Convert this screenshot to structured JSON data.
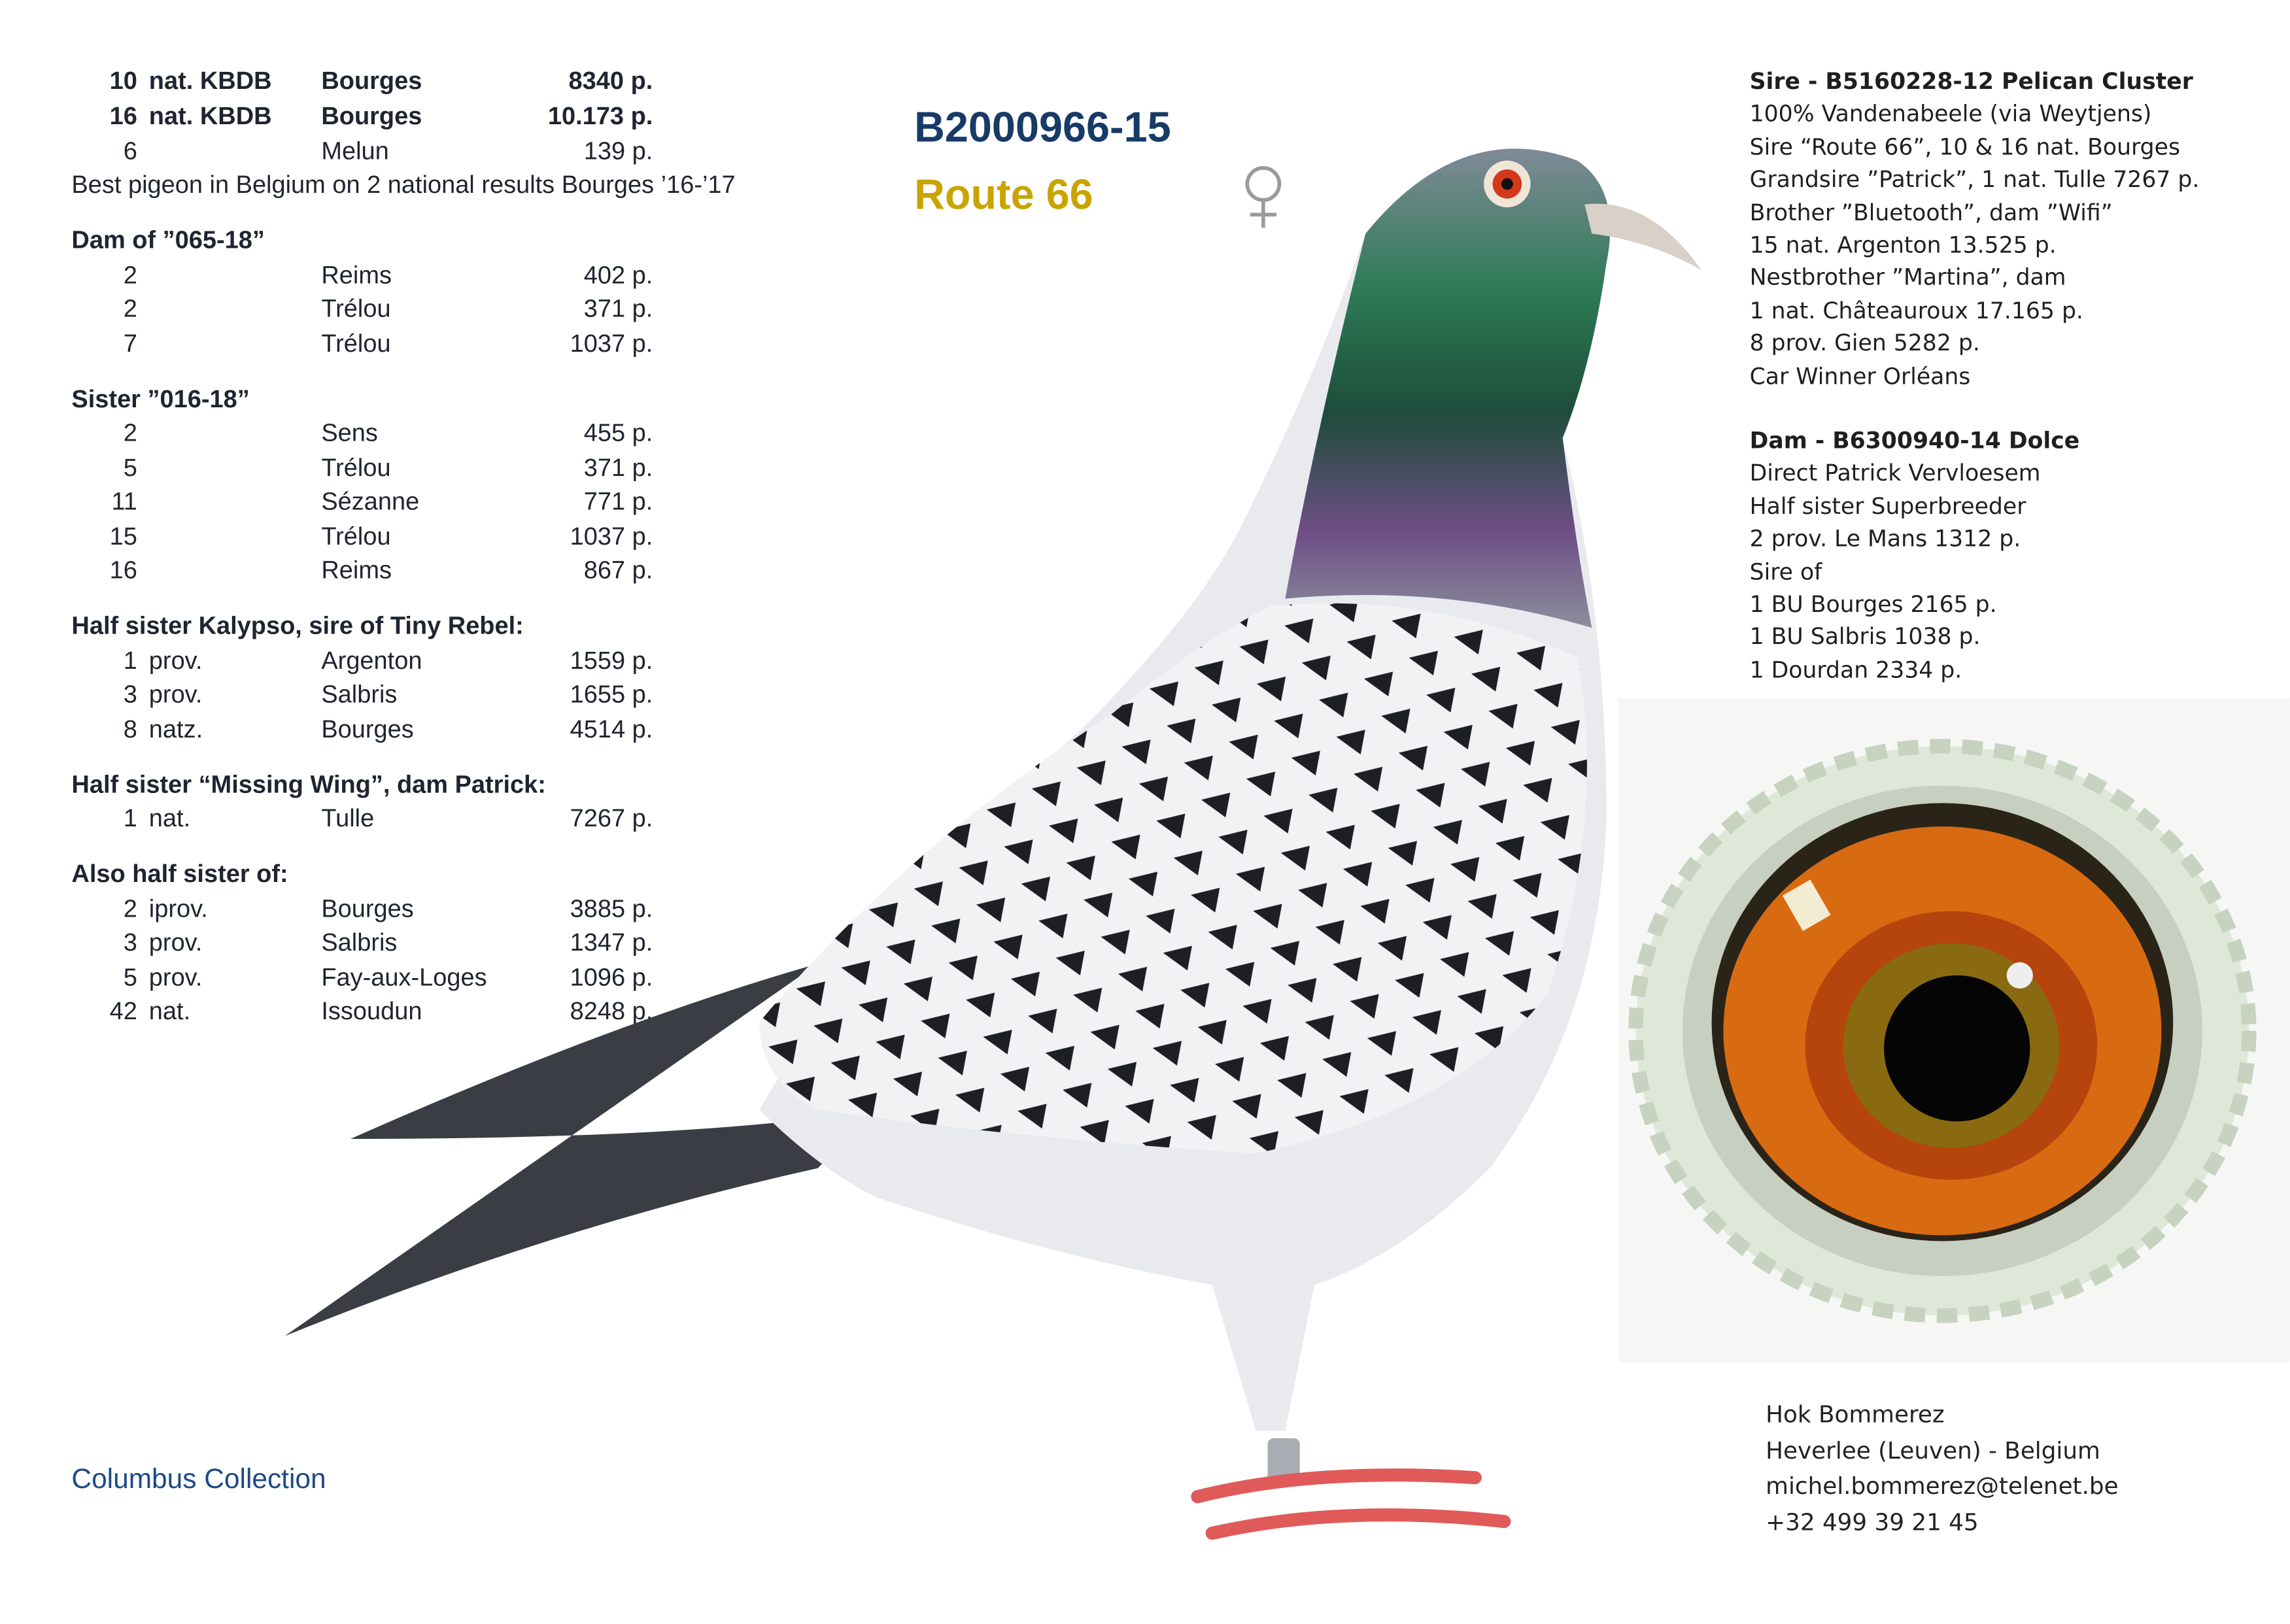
{
  "header": {
    "ring": "B2000966-15",
    "name": "Route 66",
    "sex_icon": "female-symbol",
    "colors": {
      "ring": "#173a66",
      "name": "#c9a400"
    }
  },
  "results": {
    "main": [
      {
        "n": "10",
        "t": "nat. KBDB",
        "p": "Bourges",
        "v": "8340 p.",
        "bold": true
      },
      {
        "n": "16",
        "t": "nat. KBDB",
        "p": "Bourges",
        "v": "10.173 p.",
        "bold": true
      },
      {
        "n": "6",
        "t": "",
        "p": "Melun",
        "v": "139 p.",
        "bold": false
      }
    ],
    "note": "Best pigeon in Belgium on 2 national results Bourges ’16-’17",
    "sections": [
      {
        "title": "Dam of ”065-18”",
        "rows": [
          {
            "n": "2",
            "t": "",
            "p": "Reims",
            "v": "402 p."
          },
          {
            "n": "2",
            "t": "",
            "p": "Trélou",
            "v": "371 p."
          },
          {
            "n": "7",
            "t": "",
            "p": "Trélou",
            "v": "1037 p."
          }
        ]
      },
      {
        "title": "Sister ”016-18”",
        "rows": [
          {
            "n": "2",
            "t": "",
            "p": "Sens",
            "v": "455 p."
          },
          {
            "n": "5",
            "t": "",
            "p": "Trélou",
            "v": "371 p."
          },
          {
            "n": "11",
            "t": "",
            "p": "Sézanne",
            "v": "771 p."
          },
          {
            "n": "15",
            "t": "",
            "p": "Trélou",
            "v": "1037 p."
          },
          {
            "n": "16",
            "t": "",
            "p": "Reims",
            "v": "867 p."
          }
        ]
      },
      {
        "title": "Half sister Kalypso, sire of Tiny Rebel:",
        "rows": [
          {
            "n": "1",
            "t": "prov.",
            "p": "Argenton",
            "v": "1559 p."
          },
          {
            "n": "3",
            "t": "prov.",
            "p": "Salbris",
            "v": "1655 p."
          },
          {
            "n": "8",
            "t": "natz.",
            "p": "Bourges",
            "v": "4514 p."
          }
        ]
      },
      {
        "title": "Half sister “Missing Wing”, dam Patrick:",
        "rows": [
          {
            "n": "1",
            "t": "nat.",
            "p": "Tulle",
            "v": "7267 p."
          }
        ]
      },
      {
        "title": "Also half sister of:",
        "rows": [
          {
            "n": "2",
            "t": "iprov.",
            "p": "Bourges",
            "v": "3885 p."
          },
          {
            "n": "3",
            "t": "prov.",
            "p": "Salbris",
            "v": "1347 p."
          },
          {
            "n": "5",
            "t": "prov.",
            "p": "Fay-aux-Loges",
            "v": "1096 p."
          },
          {
            "n": "42",
            "t": "nat.",
            "p": "Issoudun",
            "v": "8248 p."
          }
        ]
      }
    ]
  },
  "pedigree": {
    "sire": {
      "title": "Sire - B5160228-12 Pelican Cluster",
      "lines": [
        "100% Vandenabeele (via Weytjens)",
        "Sire “Route 66”, 10 & 16 nat. Bourges",
        "Grandsire ”Patrick”, 1 nat. Tulle 7267 p.",
        "Brother ”Bluetooth”, dam ”Wifi”",
        "15 nat. Argenton 13.525 p.",
        "Nestbrother ”Martina”, dam",
        "1 nat. Châteauroux 17.165 p.",
        "8 prov. Gien 5282 p.",
        "Car Winner Orléans"
      ]
    },
    "dam": {
      "title": "Dam - B6300940-14 Dolce",
      "lines": [
        "Direct Patrick Vervloesem",
        "Half sister Superbreeder",
        "2 prov. Le Mans 1312 p.",
        "Sire of",
        "1 BU Bourges 2165 p.",
        "1 BU Salbris 1038 p.",
        "1 Dourdan 2334 p."
      ]
    }
  },
  "footer": {
    "collection": "Columbus Collection",
    "collection_color": "#1d4a86"
  },
  "contact": [
    "Hok Bommerez",
    "Heverlee (Leuven) - Belgium",
    "michel.bommerez@telenet.be",
    "+32 499 39 21 45"
  ]
}
